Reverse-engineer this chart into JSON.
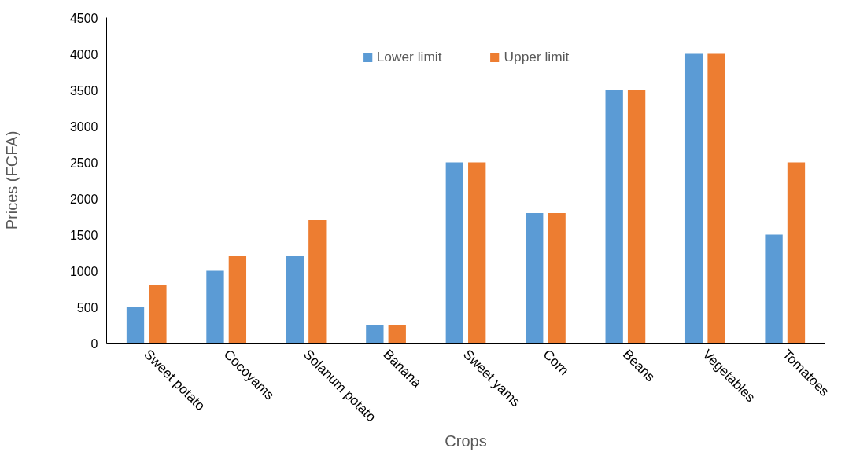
{
  "chart_data": {
    "type": "bar",
    "xlabel": "Crops",
    "ylabel": "Prices (FCFA)",
    "categories": [
      "Sweet potato",
      "Cocoyams",
      "Solanum potato",
      "Banana",
      "Sweet yams",
      "Corn",
      "Beans",
      "Vegetables",
      "Tomatoes"
    ],
    "series": [
      {
        "name": "Lower limit",
        "color": "#5b9bd5",
        "values": [
          500,
          1000,
          1200,
          250,
          2500,
          1800,
          3500,
          4000,
          1500
        ]
      },
      {
        "name": "Upper limit",
        "color": "#ed7d31",
        "values": [
          800,
          1200,
          1700,
          250,
          2500,
          1800,
          3500,
          4000,
          2500
        ]
      }
    ],
    "ylim": [
      0,
      4500
    ],
    "yticks": [
      0,
      500,
      1000,
      1500,
      2000,
      2500,
      3000,
      3500,
      4000,
      4500
    ],
    "grid": false,
    "legend": "top"
  }
}
